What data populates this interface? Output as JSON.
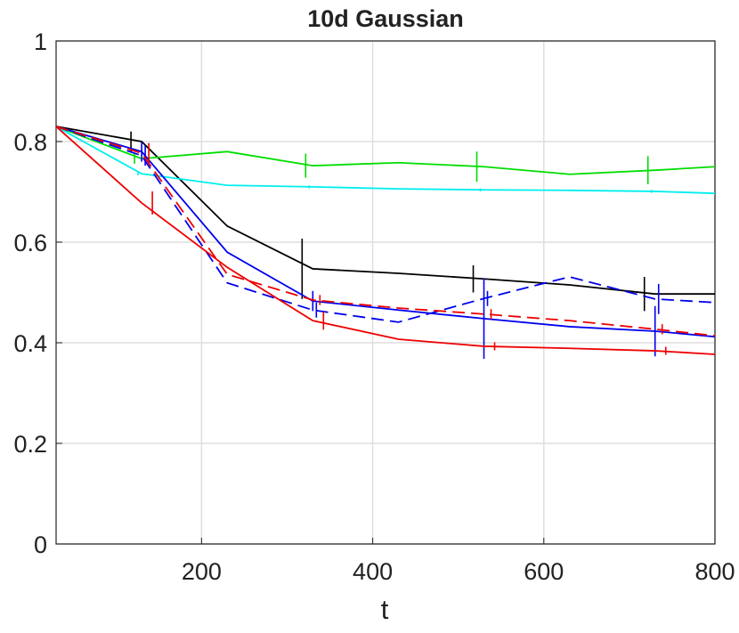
{
  "chart_data": {
    "type": "line",
    "title": "10d Gaussian",
    "x_label": "t",
    "x": [
      30,
      130,
      230,
      330,
      430,
      530,
      630,
      730,
      800
    ],
    "xlim": [
      30,
      800
    ],
    "xticks": [
      200,
      400,
      600,
      800
    ],
    "ylim": [
      0,
      1
    ],
    "yticks": [
      0,
      0.2,
      0.4,
      0.6,
      0.8,
      1
    ],
    "grid": true,
    "series": [
      {
        "color": "#000000",
        "dash": false,
        "values": [
          0.83,
          0.8,
          0.632,
          0.547,
          0.538,
          0.527,
          0.515,
          0.497,
          0.497
        ],
        "errors": [
          null,
          0.02,
          null,
          0.06,
          null,
          0.027,
          null,
          0.034,
          null
        ]
      },
      {
        "color": "#00dd00",
        "dash": false,
        "values": [
          0.83,
          0.766,
          0.78,
          0.752,
          0.758,
          0.75,
          0.735,
          0.743,
          0.75
        ],
        "errors": [
          null,
          0.01,
          null,
          0.024,
          null,
          0.03,
          null,
          0.028,
          null
        ]
      },
      {
        "color": "#00eeee",
        "dash": false,
        "values": [
          0.83,
          0.736,
          0.713,
          0.71,
          0.706,
          0.704,
          0.703,
          0.701,
          0.697
        ],
        "errors": [
          null,
          0.003,
          null,
          0.003,
          null,
          0.003,
          null,
          0.003,
          null
        ]
      },
      {
        "color": "#0000ee",
        "dash": false,
        "values": [
          0.83,
          0.78,
          0.58,
          0.483,
          0.465,
          0.448,
          0.432,
          0.423,
          0.412
        ],
        "errors": [
          null,
          0.02,
          null,
          0.02,
          null,
          0.08,
          null,
          0.05,
          null
        ]
      },
      {
        "color": "#0000ee",
        "dash": true,
        "values": [
          0.83,
          0.772,
          0.519,
          0.465,
          0.441,
          0.488,
          0.531,
          0.487,
          0.48
        ],
        "errors": [
          null,
          0.02,
          null,
          0.015,
          null,
          0.015,
          null,
          0.03,
          null
        ]
      },
      {
        "color": "#ee0000",
        "dash": true,
        "values": [
          0.83,
          0.777,
          0.536,
          0.485,
          0.469,
          0.457,
          0.444,
          0.427,
          0.414
        ],
        "errors": [
          null,
          0.02,
          null,
          0.01,
          null,
          0.01,
          null,
          0.01,
          null
        ]
      },
      {
        "color": "#ee0000",
        "dash": false,
        "values": [
          0.83,
          0.678,
          0.55,
          0.444,
          0.407,
          0.393,
          0.389,
          0.384,
          0.377
        ],
        "errors": [
          null,
          0.023,
          null,
          0.018,
          null,
          0.008,
          null,
          0.008,
          null
        ]
      }
    ]
  }
}
